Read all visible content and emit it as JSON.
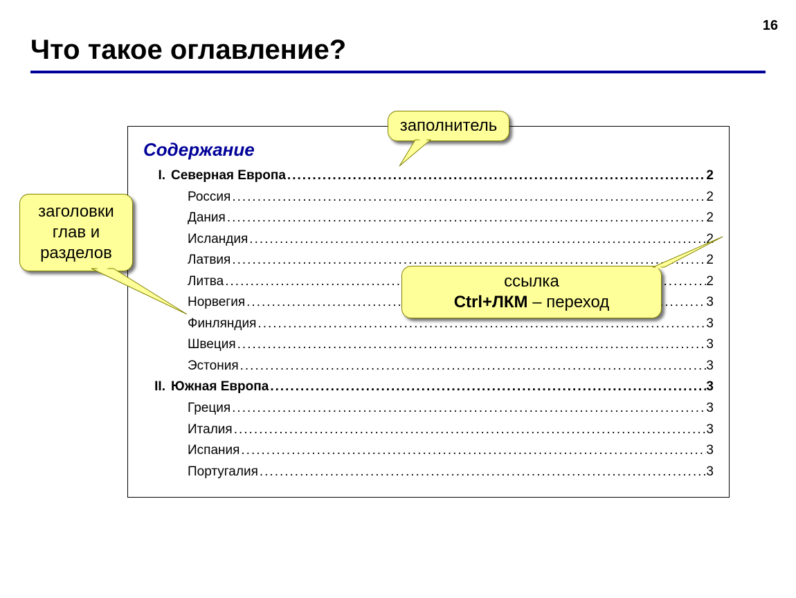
{
  "page_number": "16",
  "slide_title": "Что такое оглавление?",
  "colors": {
    "accent_rule": "#000099",
    "toc_heading": "#000099",
    "callout_fill": "#ffff99",
    "callout_border": "#808000",
    "text": "#000000",
    "background": "#ffffff"
  },
  "toc": {
    "heading": "Содержание",
    "sections": [
      {
        "roman": "I.",
        "title": "Северная Европа",
        "page": "2",
        "items": [
          {
            "label": "Россия",
            "page": "2"
          },
          {
            "label": "Дания",
            "page": "2"
          },
          {
            "label": "Исландия",
            "page": "2"
          },
          {
            "label": "Латвия",
            "page": "2"
          },
          {
            "label": "Литва",
            "page": "2"
          },
          {
            "label": "Норвегия",
            "page": "3"
          },
          {
            "label": "Финляндия",
            "page": "3"
          },
          {
            "label": "Швеция",
            "page": "3"
          },
          {
            "label": "Эстония",
            "page": "3"
          }
        ]
      },
      {
        "roman": "II.",
        "title": "Южная Европа",
        "page": "3",
        "items": [
          {
            "label": "Греция",
            "page": "3"
          },
          {
            "label": "Италия",
            "page": "3"
          },
          {
            "label": "Испания",
            "page": "3"
          },
          {
            "label": "Португалия",
            "page": "3"
          }
        ]
      }
    ]
  },
  "callouts": {
    "fill": "заполнитель",
    "headings_line1": "заголовки",
    "headings_line2": "глав и",
    "headings_line3": "разделов",
    "link_line1": "ссылка",
    "link_line2_bold": "Ctrl+ЛКМ",
    "link_line2_rest": " – переход"
  }
}
